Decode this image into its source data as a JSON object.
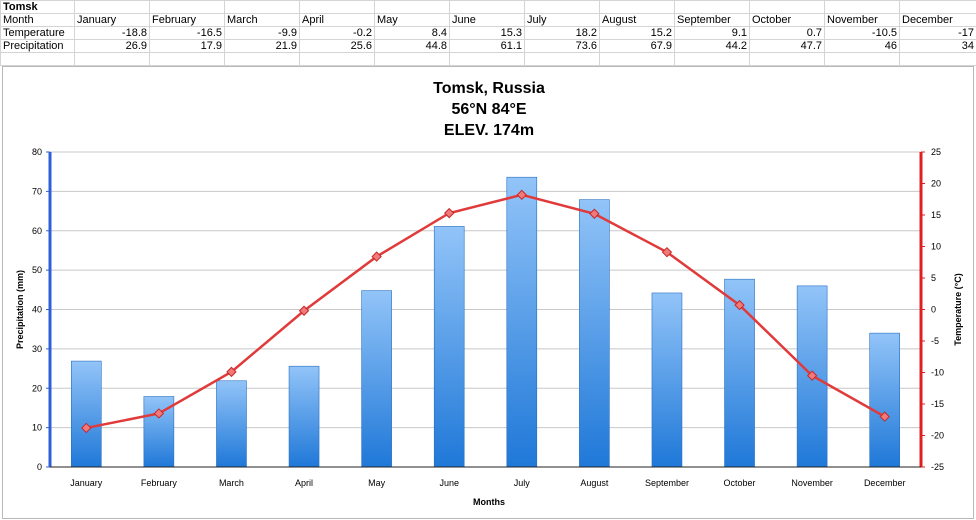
{
  "sheet": {
    "title": "Tomsk",
    "rows": [
      {
        "label": "Month",
        "cells": [
          "January",
          "February",
          "March",
          "April",
          "May",
          "June",
          "July",
          "August",
          "September",
          "October",
          "November",
          "December"
        ]
      },
      {
        "label": "Temperature",
        "cells": [
          "-18.8",
          "-16.5",
          "-9.9",
          "-0.2",
          "8.4",
          "15.3",
          "18.2",
          "15.2",
          "9.1",
          "0.7",
          "-10.5",
          "-17"
        ]
      },
      {
        "label": "Precipitation",
        "cells": [
          "26.9",
          "17.9",
          "21.9",
          "25.6",
          "44.8",
          "61.1",
          "73.6",
          "67.9",
          "44.2",
          "47.7",
          "46",
          "34"
        ]
      }
    ]
  },
  "chart_data": {
    "type": "bar",
    "title": [
      "Tomsk, Russia",
      "56°N 84°E",
      "ELEV. 174m"
    ],
    "categories": [
      "January",
      "February",
      "March",
      "April",
      "May",
      "June",
      "July",
      "August",
      "September",
      "October",
      "November",
      "December"
    ],
    "xlabel": "Months",
    "ylabel": "Precipitation (mm)",
    "y2label": "Temperature (°C)",
    "ylim": [
      0,
      80
    ],
    "y2lim": [
      -25,
      25
    ],
    "yticks": [
      0,
      10,
      20,
      30,
      40,
      50,
      60,
      70,
      80
    ],
    "y2ticks": [
      -25,
      -20,
      -15,
      -10,
      -5,
      0,
      5,
      10,
      15,
      20,
      25
    ],
    "grid": true,
    "series": [
      {
        "type": "bar",
        "axis": "left",
        "color": "#3a8ee6",
        "values": [
          26.9,
          17.9,
          21.9,
          25.6,
          44.8,
          61.1,
          73.6,
          67.9,
          44.2,
          47.7,
          46,
          34
        ]
      },
      {
        "type": "line",
        "axis": "right",
        "color": "#e03a3a",
        "values": [
          -18.8,
          -16.5,
          -9.9,
          -0.2,
          8.4,
          15.3,
          18.2,
          15.2,
          9.1,
          0.7,
          -10.5,
          -17
        ]
      }
    ],
    "left_axis_color": "#2f5fd8",
    "right_axis_color": "#e02020"
  }
}
